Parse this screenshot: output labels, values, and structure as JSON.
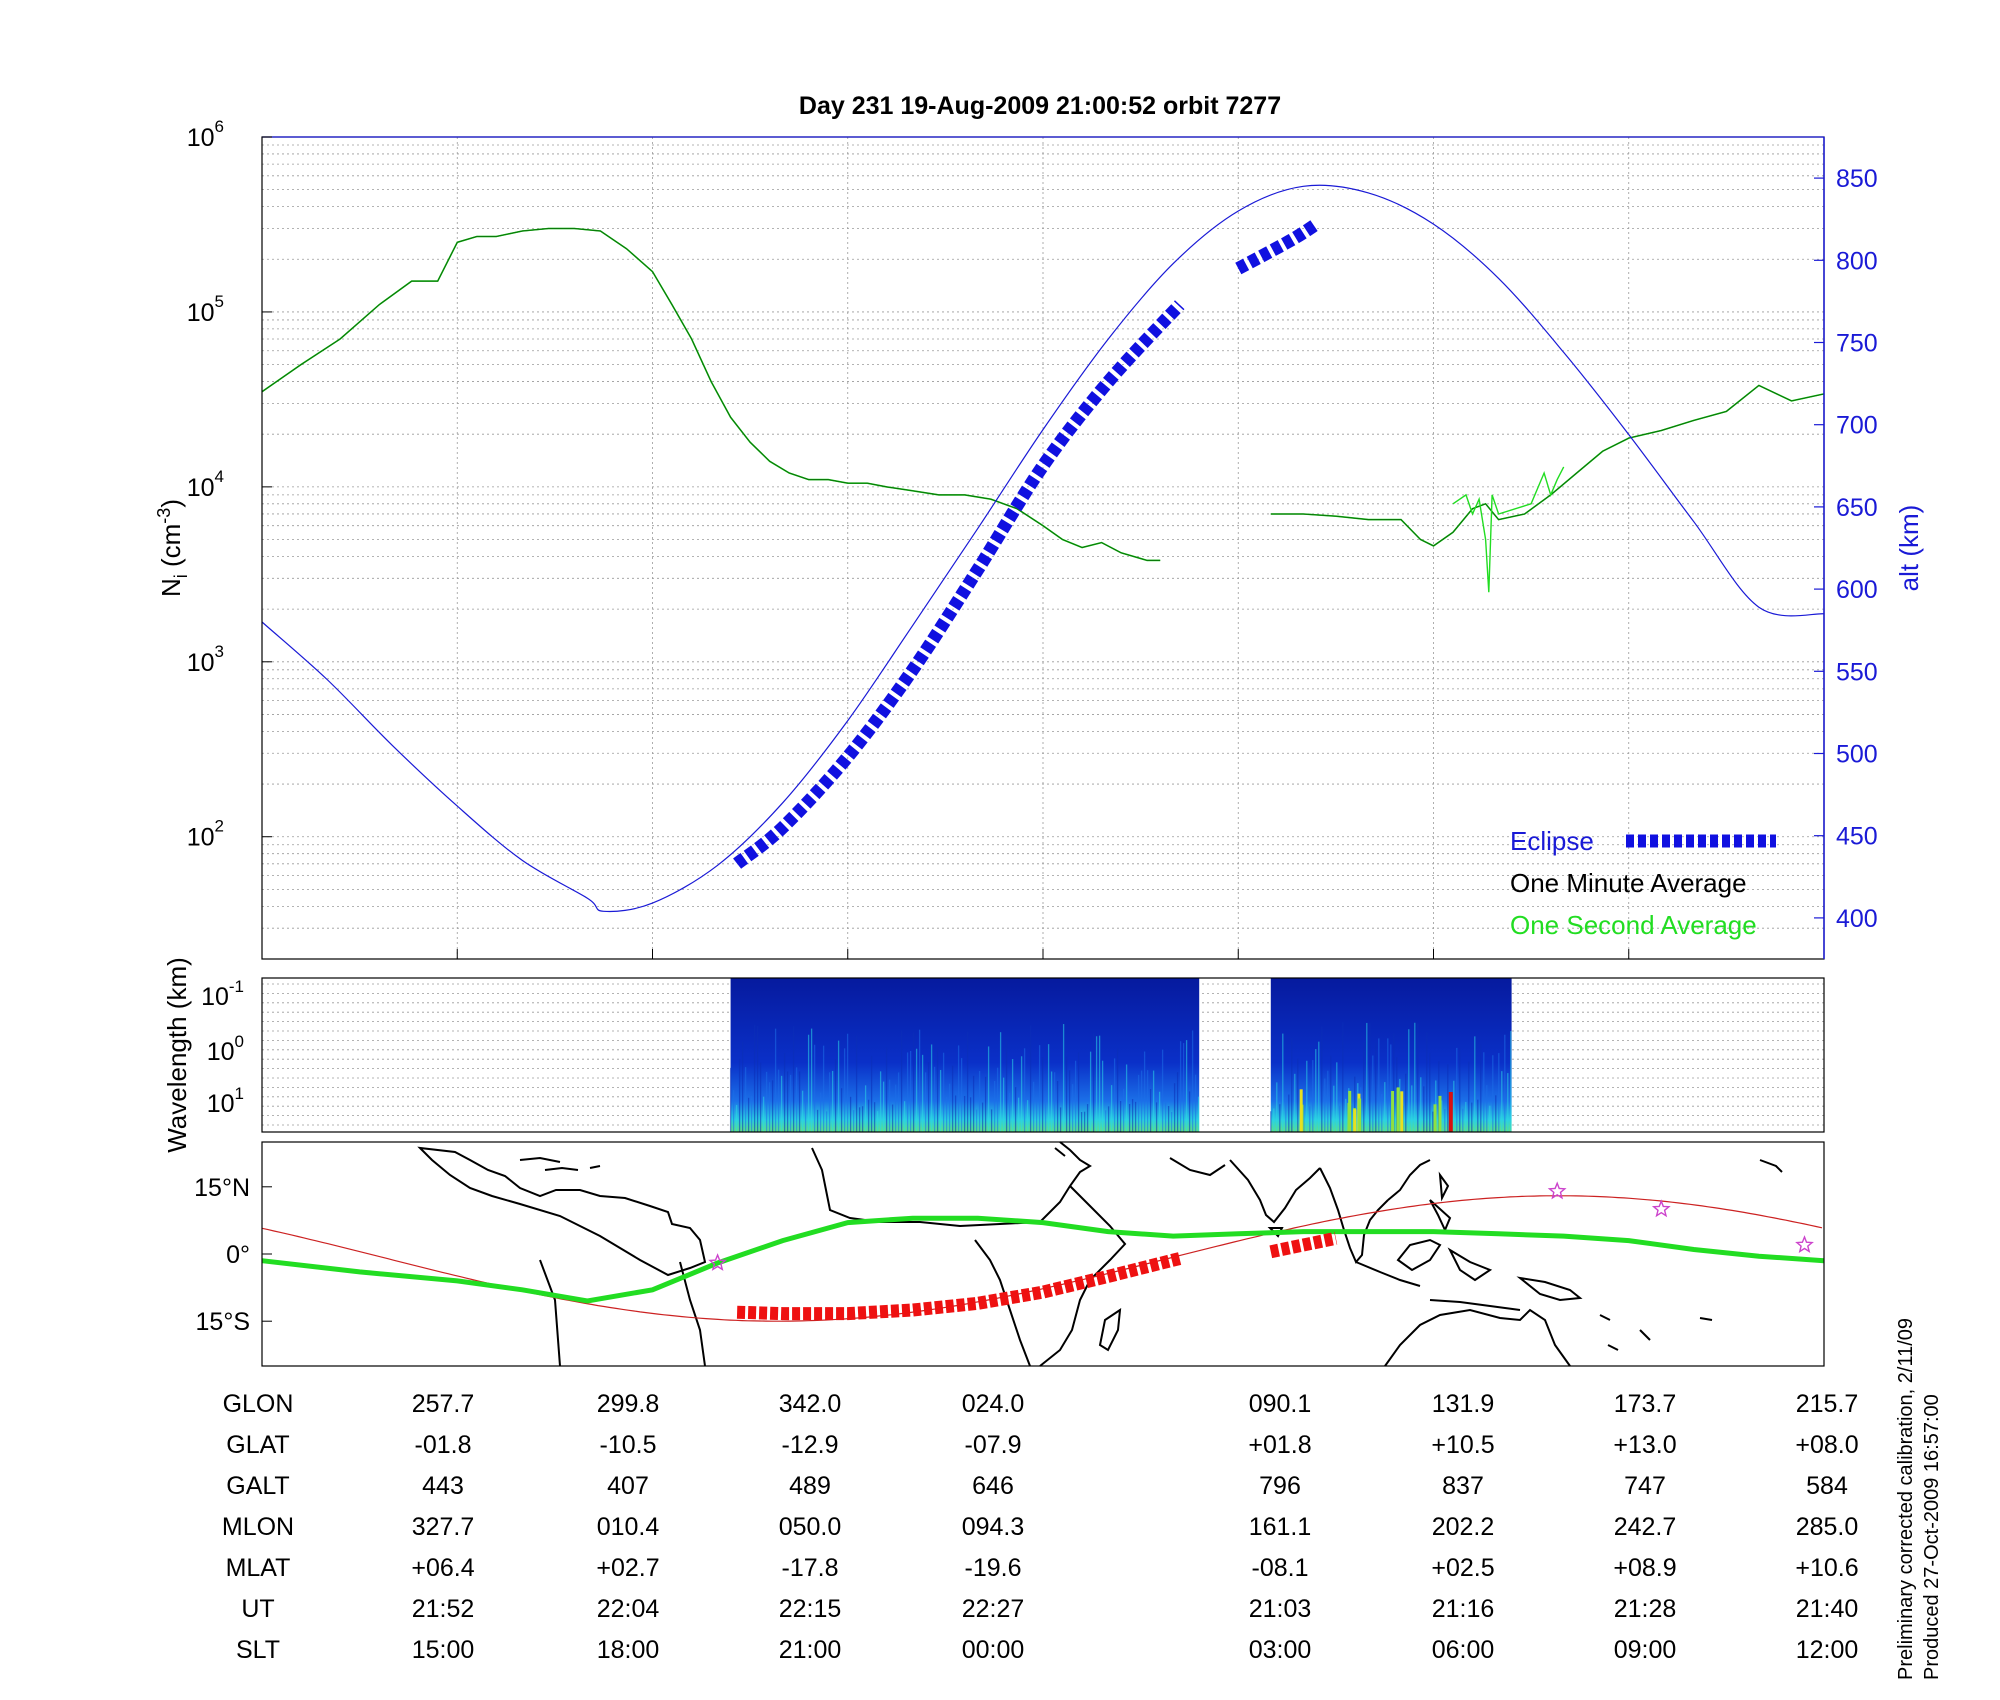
{
  "title": "Day 231  19-Aug-2009 21:00:52   orbit 7277",
  "colors": {
    "altitude": "#1a1ad6",
    "one_minute": "#0a7a0a",
    "one_second": "#22dd22",
    "eclipse": "#1010e0",
    "eclipse_map": "#ee1111",
    "orbit_track": "#cc2222",
    "magnetic_track": "#22dd22",
    "star_marker": "#cc44cc",
    "spectrogram_bg": "#0a1a9a"
  },
  "footer": {
    "line1": "Preliminary corrected calibration, 2/11/09",
    "line2": "Produced 27-Oct-2009 16:57:00"
  },
  "table": {
    "row_labels": [
      "GLON",
      "GLAT",
      "GALT",
      "MLON",
      "MLAT",
      "UT",
      "SLT"
    ],
    "columns": [
      {
        "GLON": "257.7",
        "GLAT": "-01.8",
        "GALT": "443",
        "MLON": "327.7",
        "MLAT": "+06.4",
        "UT": "21:52",
        "SLT": "15:00"
      },
      {
        "GLON": "299.8",
        "GLAT": "-10.5",
        "GALT": "407",
        "MLON": "010.4",
        "MLAT": "+02.7",
        "UT": "22:04",
        "SLT": "18:00"
      },
      {
        "GLON": "342.0",
        "GLAT": "-12.9",
        "GALT": "489",
        "MLON": "050.0",
        "MLAT": "-17.8",
        "UT": "22:15",
        "SLT": "21:00"
      },
      {
        "GLON": "024.0",
        "GLAT": "-07.9",
        "GALT": "646",
        "MLON": "094.3",
        "MLAT": "-19.6",
        "UT": "22:27",
        "SLT": "00:00"
      },
      {
        "GLON": "090.1",
        "GLAT": "+01.8",
        "GALT": "796",
        "MLON": "161.1",
        "MLAT": "-08.1",
        "UT": "21:03",
        "SLT": "03:00"
      },
      {
        "GLON": "131.9",
        "GLAT": "+10.5",
        "GALT": "837",
        "MLON": "202.2",
        "MLAT": "+02.5",
        "UT": "21:16",
        "SLT": "06:00"
      },
      {
        "GLON": "173.7",
        "GLAT": "+13.0",
        "GALT": "747",
        "MLON": "242.7",
        "MLAT": "+08.9",
        "UT": "21:28",
        "SLT": "09:00"
      },
      {
        "GLON": "215.7",
        "GLAT": "+08.0",
        "GALT": "584",
        "MLON": "285.0",
        "MLAT": "+10.6",
        "UT": "21:40",
        "SLT": "12:00"
      }
    ]
  },
  "chart_data": [
    {
      "type": "line",
      "panel": "density",
      "x_ticks_slt": [
        15,
        18,
        21,
        24,
        27,
        30,
        33,
        36
      ],
      "xlim_slt": [
        12,
        36
      ],
      "ylabel_left": "N_i (cm^-3)",
      "y_left_scale": "log",
      "y_left_ticks": [
        "10^2",
        "10^3",
        "10^4",
        "10^5",
        "10^6"
      ],
      "ylim_left": [
        20,
        1000000
      ],
      "ylabel_right": "alt (km)",
      "y_right_ticks": [
        400,
        450,
        500,
        550,
        600,
        650,
        700,
        750,
        800,
        850
      ],
      "ylim_right": [
        375,
        875
      ],
      "grid": true,
      "legend_position": "bottom-right",
      "legend": [
        "Eclipse",
        "One Minute Average",
        "One Second Average"
      ],
      "series": [
        {
          "name": "One Minute Average",
          "x_slt": [
            12.0,
            12.6,
            13.2,
            13.8,
            14.3,
            14.7,
            15.0,
            15.3,
            15.6,
            16.0,
            16.4,
            16.8,
            17.2,
            17.6,
            18.0,
            18.3,
            18.6,
            18.9,
            19.2,
            19.5,
            19.8,
            20.1,
            20.4,
            20.7,
            21.0,
            21.3,
            21.6,
            22.0,
            22.4,
            22.8,
            23.2,
            23.6,
            24.0,
            24.3,
            24.6,
            24.9,
            25.2,
            25.6,
            25.8
          ],
          "y": [
            35000,
            50000,
            70000,
            110000,
            150000,
            150000,
            250000,
            270000,
            270000,
            290000,
            300000,
            300000,
            290000,
            230000,
            170000,
            110000,
            70000,
            40000,
            25000,
            18000,
            14000,
            12000,
            11000,
            11000,
            10500,
            10500,
            10000,
            9500,
            9000,
            9000,
            8500,
            7500,
            6000,
            5000,
            4500,
            4800,
            4200,
            3800,
            3800
          ]
        },
        {
          "name": "One Minute Average (second pass)",
          "x_slt": [
            27.5,
            28.0,
            28.5,
            29.0,
            29.5,
            29.8,
            30.0,
            30.3,
            30.6,
            30.8,
            31.0,
            31.4,
            31.8,
            32.2,
            32.6,
            33.0,
            33.5,
            34.0,
            34.5,
            35.0,
            35.5,
            36.0
          ],
          "y": [
            7000,
            7000,
            6800,
            6500,
            6500,
            5000,
            4600,
            5500,
            7500,
            8000,
            6500,
            7000,
            9000,
            12000,
            16000,
            19000,
            21000,
            24000,
            27000,
            38000,
            31000,
            34000
          ]
        },
        {
          "name": "One Second Average",
          "x_slt": [
            30.3,
            30.5,
            30.6,
            30.7,
            30.8,
            30.85,
            30.9,
            31.0,
            31.5,
            31.7,
            31.8,
            31.9,
            32.0
          ],
          "y": [
            8000,
            9000,
            7000,
            8500,
            5000,
            2500,
            9000,
            7000,
            8000,
            12000,
            9000,
            11000,
            13000
          ]
        },
        {
          "name": "alt",
          "axis": "right",
          "x_slt": [
            12,
            13,
            14,
            15,
            16,
            17,
            17.25,
            18,
            19,
            20,
            21,
            22,
            23,
            24,
            25,
            26,
            27,
            28,
            29,
            30,
            31,
            32,
            33,
            34,
            35,
            36
          ],
          "y": [
            580,
            545,
            505,
            468,
            435,
            412,
            404,
            409,
            432,
            470,
            520,
            578,
            637,
            697,
            752,
            798,
            830,
            845,
            841,
            822,
            789,
            744,
            694,
            641,
            589,
            585
          ]
        },
        {
          "name": "Eclipse",
          "axis": "right",
          "x_slt": [
            19.3,
            20.0,
            21.0,
            22.0,
            23.0,
            24.0,
            25.0,
            26.1,
            27.0,
            27.8,
            28.2
          ],
          "y": [
            433,
            455,
            498,
            551,
            612,
            675,
            726,
            773,
            795,
            812,
            822
          ]
        }
      ]
    },
    {
      "type": "heatmap",
      "panel": "spectrogram",
      "ylabel": "Wavelength (km)",
      "y_ticks": [
        "10^-1",
        "10^0",
        "10^1"
      ],
      "segments_slt": [
        [
          19.2,
          26.4
        ],
        [
          27.5,
          31.2
        ]
      ]
    },
    {
      "type": "line",
      "panel": "map",
      "y_ticks": [
        "15°N",
        "0°",
        "15°S"
      ],
      "ylim_deg": [
        -25,
        25
      ],
      "stars_slt_lat": [
        [
          19.0,
          -2.0
        ],
        [
          31.9,
          14.0
        ],
        [
          33.5,
          10.0
        ],
        [
          35.7,
          2.0
        ]
      ]
    }
  ]
}
